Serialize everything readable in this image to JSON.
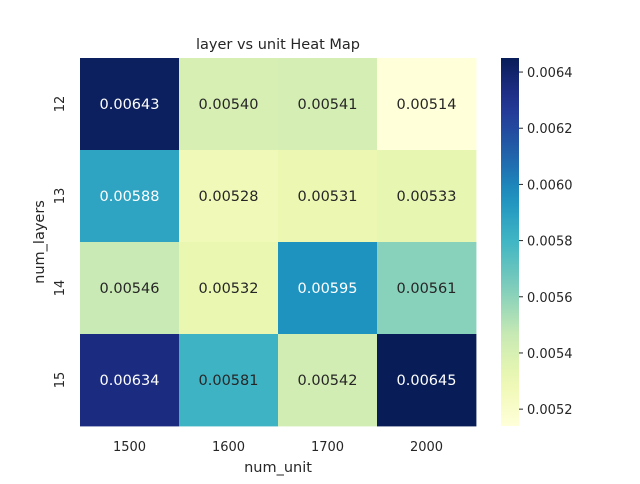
{
  "chart_data": {
    "type": "heatmap",
    "title": "layer vs unit Heat Map",
    "xlabel": "num_unit",
    "ylabel": "num_layers",
    "x_categories": [
      "1500",
      "1600",
      "1700",
      "2000"
    ],
    "y_categories": [
      "12",
      "13",
      "14",
      "15"
    ],
    "values": [
      [
        0.00643,
        0.0054,
        0.00541,
        0.00514
      ],
      [
        0.00588,
        0.00528,
        0.00531,
        0.00533
      ],
      [
        0.00546,
        0.00532,
        0.00595,
        0.00561
      ],
      [
        0.00634,
        0.00581,
        0.00542,
        0.00645
      ]
    ],
    "annotation_format": "0.00000",
    "colormap": "YlGnBu",
    "color_range": [
      0.00514,
      0.00645
    ],
    "colorbar_ticks": [
      "0.0052",
      "0.0054",
      "0.0056",
      "0.0058",
      "0.0060",
      "0.0062",
      "0.0064"
    ],
    "colorbar_tick_values": [
      0.0052,
      0.0054,
      0.0056,
      0.0058,
      0.006,
      0.0062,
      0.0064
    ]
  }
}
